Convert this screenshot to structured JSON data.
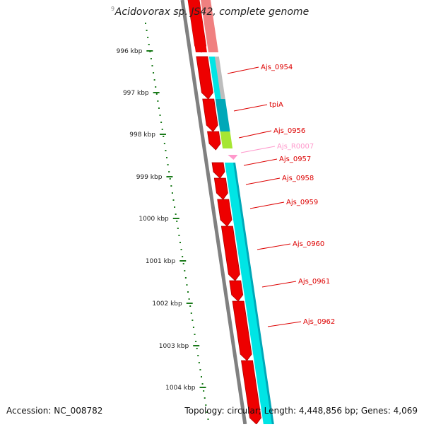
{
  "title": "Acidovorax sp. JS42, complete genome",
  "footer": {
    "accession": "Accession: NC_008782",
    "summary": "Topology: circular; Length: 4,448,856 bp; Genes: 4,069"
  },
  "ruler": {
    "cut_label": "9",
    "labels": [
      "996 kbp",
      "997 kbp",
      "998 kbp",
      "999 kbp",
      "1000 kbp",
      "1001 kbp",
      "1002 kbp",
      "1003 kbp",
      "1004 kbp"
    ],
    "color": "#1a7a1a"
  },
  "colors": {
    "gene": "#ee0000",
    "gene_dark": "#b00000",
    "cds": "#00e5e5",
    "cds_dark": "#00a8b8",
    "backbone": "#808080",
    "label": "#dd0000",
    "rrna": "#ff99cc",
    "lime": "#a6e632",
    "grey_band": "#bdbdbd"
  },
  "genes": [
    {
      "label": "Ajs_0954",
      "kind": "gene"
    },
    {
      "label": "tpiA",
      "kind": "gene"
    },
    {
      "label": "Ajs_0956",
      "kind": "gene"
    },
    {
      "label": "Ajs_R0007",
      "kind": "rna"
    },
    {
      "label": "Ajs_0957",
      "kind": "gene"
    },
    {
      "label": "Ajs_0958",
      "kind": "gene"
    },
    {
      "label": "Ajs_0959",
      "kind": "gene"
    },
    {
      "label": "Ajs_0960",
      "kind": "gene"
    },
    {
      "label": "Ajs_0961",
      "kind": "gene"
    },
    {
      "label": "Ajs_0962",
      "kind": "gene"
    }
  ]
}
